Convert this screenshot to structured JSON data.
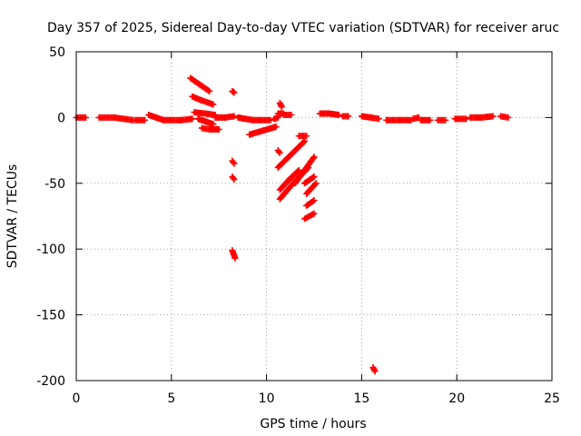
{
  "chart_data": {
    "type": "scatter",
    "title": "Day 357 of 2025, Sidereal Day-to-day VTEC variation (SDTVAR) for receiver aruc",
    "xlabel": "GPS time / hours",
    "ylabel": "SDTVAR / TECUs",
    "xlim": [
      0,
      25
    ],
    "ylim": [
      -200,
      50
    ],
    "xticks": [
      0,
      5,
      10,
      15,
      20,
      25
    ],
    "yticks": [
      -200,
      -150,
      -100,
      -50,
      0,
      50
    ],
    "grid": true,
    "marker": "+",
    "series_color": "#ff0000",
    "segments": [
      {
        "x": [
          0.0,
          0.5
        ],
        "y": [
          0,
          0
        ]
      },
      {
        "x": [
          1.2,
          2.0,
          3.0
        ],
        "y": [
          0,
          0,
          -2
        ]
      },
      {
        "x": [
          3.1,
          3.6
        ],
        "y": [
          -2,
          -2
        ]
      },
      {
        "x": [
          3.8,
          4.2,
          4.6
        ],
        "y": [
          2,
          0,
          -2
        ]
      },
      {
        "x": [
          4.6,
          5.5,
          6.1
        ],
        "y": [
          -2,
          -2,
          -1
        ]
      },
      {
        "x": [
          6.0,
          6.5,
          7.0
        ],
        "y": [
          30,
          25,
          20
        ]
      },
      {
        "x": [
          6.1,
          6.6,
          7.2
        ],
        "y": [
          16,
          13,
          10
        ]
      },
      {
        "x": [
          6.2,
          6.8,
          7.3
        ],
        "y": [
          4,
          3,
          2
        ]
      },
      {
        "x": [
          6.4,
          6.8,
          7.2
        ],
        "y": [
          -1,
          -3,
          -5
        ]
      },
      {
        "x": [
          6.6,
          7.0,
          7.5
        ],
        "y": [
          -8,
          -9,
          -9
        ]
      },
      {
        "x": [
          7.3,
          7.8,
          8.3
        ],
        "y": [
          0,
          0,
          1
        ]
      },
      {
        "x": [
          8.2,
          8.3
        ],
        "y": [
          20,
          19
        ]
      },
      {
        "x": [
          8.2,
          8.3
        ],
        "y": [
          -33,
          -35
        ]
      },
      {
        "x": [
          8.2,
          8.3
        ],
        "y": [
          -45,
          -47
        ]
      },
      {
        "x": [
          8.2,
          8.35
        ],
        "y": [
          -101,
          -107
        ]
      },
      {
        "x": [
          8.5,
          9.3,
          10.2
        ],
        "y": [
          0,
          -2,
          -2
        ]
      },
      {
        "x": [
          9.1,
          9.8,
          10.5
        ],
        "y": [
          -13,
          -10,
          -7
        ]
      },
      {
        "x": [
          10.4,
          10.6
        ],
        "y": [
          -1,
          0
        ]
      },
      {
        "x": [
          10.7,
          10.8
        ],
        "y": [
          11,
          8
        ]
      },
      {
        "x": [
          10.6,
          10.9
        ],
        "y": [
          3,
          3
        ]
      },
      {
        "x": [
          10.9,
          11.3
        ],
        "y": [
          2,
          2
        ]
      },
      {
        "x": [
          10.6,
          10.7
        ],
        "y": [
          -25,
          -27
        ]
      },
      {
        "x": [
          10.6,
          11.3,
          12.0
        ],
        "y": [
          -38,
          -28,
          -18
        ]
      },
      {
        "x": [
          10.7,
          11.2,
          11.7
        ],
        "y": [
          -55,
          -47,
          -40
        ]
      },
      {
        "x": [
          10.7,
          11.4,
          12.2
        ],
        "y": [
          -62,
          -50,
          -38
        ]
      },
      {
        "x": [
          11.5,
          12.0,
          12.5
        ],
        "y": [
          -50,
          -40,
          -30
        ]
      },
      {
        "x": [
          11.7,
          12.1
        ],
        "y": [
          -14,
          -14
        ]
      },
      {
        "x": [
          12.0,
          12.5
        ],
        "y": [
          -50,
          -45
        ]
      },
      {
        "x": [
          12.1,
          12.6
        ],
        "y": [
          -58,
          -50
        ]
      },
      {
        "x": [
          12.1,
          12.5
        ],
        "y": [
          -67,
          -63
        ]
      },
      {
        "x": [
          12.0,
          12.5
        ],
        "y": [
          -77,
          -73
        ]
      },
      {
        "x": [
          12.8,
          13.3,
          13.8
        ],
        "y": [
          3,
          3,
          2
        ]
      },
      {
        "x": [
          14.0,
          14.3
        ],
        "y": [
          1,
          1
        ]
      },
      {
        "x": [
          15.0,
          15.5,
          15.9
        ],
        "y": [
          1,
          0,
          -1
        ]
      },
      {
        "x": [
          15.6,
          15.7
        ],
        "y": [
          -190,
          -193
        ]
      },
      {
        "x": [
          16.3,
          17.0,
          17.6
        ],
        "y": [
          -2,
          -2,
          -2
        ]
      },
      {
        "x": [
          17.7,
          18.0
        ],
        "y": [
          -1,
          0
        ]
      },
      {
        "x": [
          18.1,
          18.6
        ],
        "y": [
          -2,
          -2
        ]
      },
      {
        "x": [
          19.0,
          19.4
        ],
        "y": [
          -2,
          -2
        ]
      },
      {
        "x": [
          19.9,
          20.5
        ],
        "y": [
          -1,
          -1
        ]
      },
      {
        "x": [
          20.7,
          21.3,
          21.9
        ],
        "y": [
          0,
          0,
          1
        ]
      },
      {
        "x": [
          22.3,
          22.7
        ],
        "y": [
          1,
          0
        ]
      }
    ]
  }
}
